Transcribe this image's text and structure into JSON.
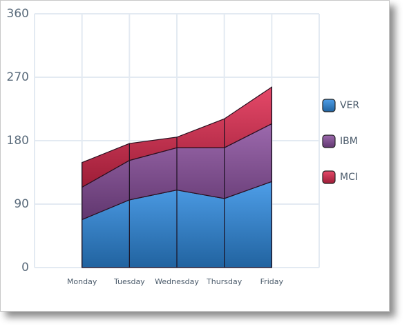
{
  "chart_data": {
    "type": "stacked-area",
    "categories": [
      "Monday",
      "Tuesday",
      "Wednesday",
      "Thursday",
      "Friday"
    ],
    "series": [
      {
        "name": "VER",
        "color": "#2f8de4",
        "values": [
          68,
          96,
          110,
          98,
          122
        ]
      },
      {
        "name": "IBM",
        "color": "#8a4f9e",
        "values": [
          46,
          56,
          60,
          72,
          82
        ]
      },
      {
        "name": "MCI",
        "color": "#e0294f",
        "values": [
          35,
          24,
          15,
          41,
          52
        ]
      }
    ],
    "ylim": [
      0,
      360
    ],
    "yticks": [
      0,
      90,
      180,
      270,
      360
    ],
    "grid": true,
    "legend": "right"
  }
}
